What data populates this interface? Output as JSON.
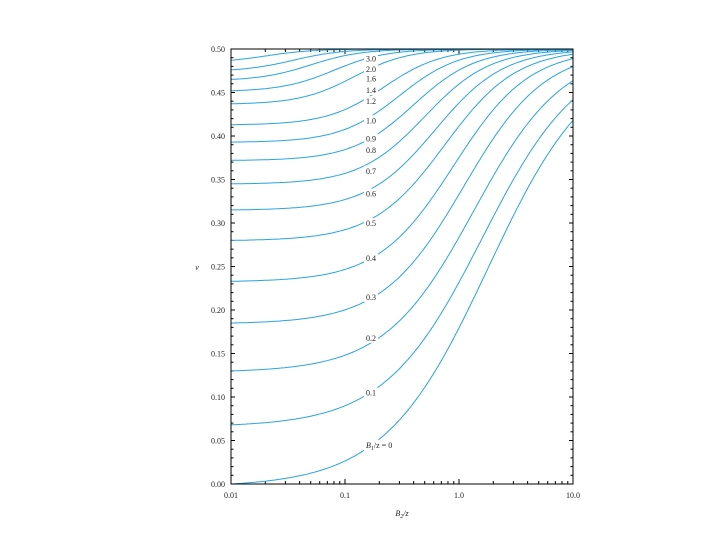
{
  "chart_data": {
    "type": "line",
    "title": "",
    "x_scale": "log",
    "xlim": [
      0.01,
      10.0
    ],
    "ylim": [
      0.0,
      0.5
    ],
    "grid": false,
    "xlabel": {
      "main": "B",
      "sub": "2",
      "rest": "/z"
    },
    "ylabel": "ν",
    "x_ticks": [
      "0.01",
      "0.1",
      "1.0",
      "10.0"
    ],
    "y_ticks": [
      "0.00",
      "0.05",
      "0.10",
      "0.15",
      "0.20",
      "0.25",
      "0.30",
      "0.35",
      "0.40",
      "0.45",
      "0.50"
    ],
    "series": [
      {
        "name": "B₁/z = 0",
        "label_main": "B",
        "label_sub": "1",
        "label_rest": "/z = 0",
        "y0": 0.0,
        "xmid": 1.8,
        "s": 1.3,
        "label_y": 0.045
      },
      {
        "name": "0.1",
        "label": "0.1",
        "y0": 0.068,
        "xmid": 1.6,
        "s": 1.22,
        "label_y": 0.105
      },
      {
        "name": "0.2",
        "label": "0.2",
        "y0": 0.13,
        "xmid": 1.35,
        "s": 1.12,
        "label_y": 0.168
      },
      {
        "name": "0.3",
        "label": "0.3",
        "y0": 0.185,
        "xmid": 1.1,
        "s": 1.02,
        "label_y": 0.215
      },
      {
        "name": "0.4",
        "label": "0.4",
        "y0": 0.233,
        "xmid": 0.9,
        "s": 0.95,
        "label_y": 0.26
      },
      {
        "name": "0.5",
        "label": "0.5",
        "y0": 0.28,
        "xmid": 0.75,
        "s": 0.9,
        "label_y": 0.3
      },
      {
        "name": "0.6",
        "label": "0.6",
        "y0": 0.315,
        "xmid": 0.62,
        "s": 0.86,
        "label_y": 0.334
      },
      {
        "name": "0.7",
        "label": "0.7",
        "y0": 0.345,
        "xmid": 0.5,
        "s": 0.82,
        "label_y": 0.36
      },
      {
        "name": "0.8",
        "label": "0.8",
        "y0": 0.372,
        "xmid": 0.4,
        "s": 0.78,
        "label_y": 0.384
      },
      {
        "name": "0.9",
        "label": "0.9",
        "y0": 0.393,
        "xmid": 0.3,
        "s": 0.75,
        "label_y": 0.397
      },
      {
        "name": "1.0",
        "label": "1.0",
        "y0": 0.413,
        "xmid": 0.22,
        "s": 0.72,
        "label_y": 0.418
      },
      {
        "name": "1.2",
        "label": "1.2",
        "y0": 0.437,
        "xmid": 0.12,
        "s": 0.68,
        "label_y": 0.44
      },
      {
        "name": "1.4",
        "label": "1.4",
        "y0": 0.452,
        "xmid": 0.08,
        "s": 0.66,
        "label_y": 0.453
      },
      {
        "name": "1.6",
        "label": "1.6",
        "y0": 0.465,
        "xmid": 0.05,
        "s": 0.64,
        "label_y": 0.466
      },
      {
        "name": "2.0",
        "label": "2.0",
        "y0": 0.476,
        "xmid": 0.035,
        "s": 0.62,
        "label_y": 0.477
      },
      {
        "name": "3.0",
        "label": "3.0",
        "y0": 0.487,
        "xmid": 0.02,
        "s": 0.6,
        "label_y": 0.489
      }
    ]
  }
}
